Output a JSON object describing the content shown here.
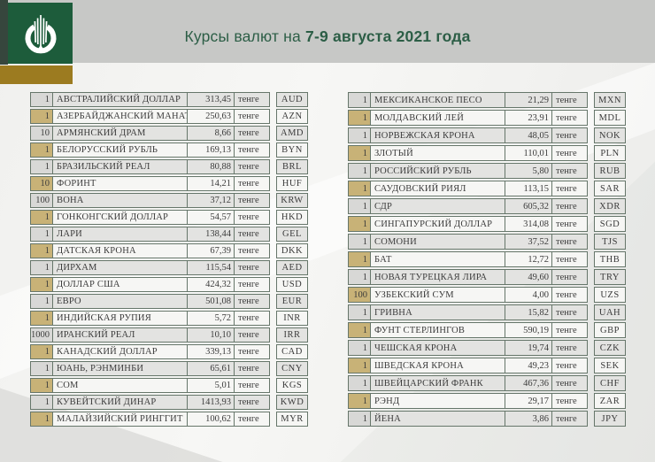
{
  "header": {
    "title_regular": "Курсы валют на ",
    "title_bold": "7-9 августа 2021 года"
  },
  "unit_label": "тенге",
  "colors": {
    "header_band": "#c7c8c6",
    "logo_green": "#1d5c3b",
    "logo_gold": "#9c7b20",
    "title_text": "#2c5e46",
    "table_border": "#66766a",
    "row_gray": "#e3e3e1",
    "row_light": "#f6f6f4",
    "qty_gray": "#d8d8d6",
    "qty_tan": "#c8b277"
  },
  "tables": {
    "left": {
      "rows": [
        {
          "qty": "1",
          "name": "АВСТРАЛИЙСКИЙ ДОЛЛАР",
          "rate": "313,45",
          "code": "AUD"
        },
        {
          "qty": "1",
          "name": "АЗЕРБАЙДЖАНСКИЙ МАНАТ",
          "rate": "250,63",
          "code": "AZN"
        },
        {
          "qty": "10",
          "name": "АРМЯНСКИЙ ДРАМ",
          "rate": "8,66",
          "code": "AMD"
        },
        {
          "qty": "1",
          "name": "БЕЛОРУССКИЙ РУБЛЬ",
          "rate": "169,13",
          "code": "BYN"
        },
        {
          "qty": "1",
          "name": "БРАЗИЛЬСКИЙ РЕАЛ",
          "rate": "80,88",
          "code": "BRL"
        },
        {
          "qty": "10",
          "name": "ФОРИНТ",
          "rate": "14,21",
          "code": "HUF"
        },
        {
          "qty": "100",
          "name": "ВОНА",
          "rate": "37,12",
          "code": "KRW"
        },
        {
          "qty": "1",
          "name": "ГОНКОНГСКИЙ ДОЛЛАР",
          "rate": "54,57",
          "code": "HKD"
        },
        {
          "qty": "1",
          "name": "ЛАРИ",
          "rate": "138,44",
          "code": "GEL"
        },
        {
          "qty": "1",
          "name": "ДАТСКАЯ КРОНА",
          "rate": "67,39",
          "code": "DKK"
        },
        {
          "qty": "1",
          "name": "ДИРХАМ",
          "rate": "115,54",
          "code": "AED"
        },
        {
          "qty": "1",
          "name": "ДОЛЛАР США",
          "rate": "424,32",
          "code": "USD"
        },
        {
          "qty": "1",
          "name": "ЕВРО",
          "rate": "501,08",
          "code": "EUR"
        },
        {
          "qty": "1",
          "name": "ИНДИЙСКАЯ РУПИЯ",
          "rate": "5,72",
          "code": "INR"
        },
        {
          "qty": "1000",
          "name": "ИРАНСКИЙ РЕАЛ",
          "rate": "10,10",
          "code": "IRR"
        },
        {
          "qty": "1",
          "name": "КАНАДСКИЙ ДОЛЛАР",
          "rate": "339,13",
          "code": "CAD"
        },
        {
          "qty": "1",
          "name": "ЮАНЬ, РЭНМИНБИ",
          "rate": "65,61",
          "code": "CNY"
        },
        {
          "qty": "1",
          "name": "СОМ",
          "rate": "5,01",
          "code": "KGS"
        },
        {
          "qty": "1",
          "name": "КУВЕЙТСКИЙ ДИНАР",
          "rate": "1413,93",
          "code": "KWD"
        },
        {
          "qty": "1",
          "name": "МАЛАЙЗИЙСКИЙ РИНГГИТ",
          "rate": "100,62",
          "code": "MYR"
        }
      ]
    },
    "right": {
      "rows": [
        {
          "qty": "1",
          "name": "МЕКСИКАНСКОЕ ПЕСО",
          "rate": "21,29",
          "code": "MXN"
        },
        {
          "qty": "1",
          "name": "МОЛДАВСКИЙ ЛЕЙ",
          "rate": "23,91",
          "code": "MDL"
        },
        {
          "qty": "1",
          "name": "НОРВЕЖСКАЯ КРОНА",
          "rate": "48,05",
          "code": "NOK"
        },
        {
          "qty": "1",
          "name": "ЗЛОТЫЙ",
          "rate": "110,01",
          "code": "PLN"
        },
        {
          "qty": "1",
          "name": "РОССИЙСКИЙ РУБЛЬ",
          "rate": "5,80",
          "code": "RUB"
        },
        {
          "qty": "1",
          "name": "САУДОВСКИЙ РИЯЛ",
          "rate": "113,15",
          "code": "SAR"
        },
        {
          "qty": "1",
          "name": "СДР",
          "rate": "605,32",
          "code": "XDR"
        },
        {
          "qty": "1",
          "name": "СИНГАПУРСКИЙ ДОЛЛАР",
          "rate": "314,08",
          "code": "SGD"
        },
        {
          "qty": "1",
          "name": "СОМОНИ",
          "rate": "37,52",
          "code": "TJS"
        },
        {
          "qty": "1",
          "name": "БАТ",
          "rate": "12,72",
          "code": "THB"
        },
        {
          "qty": "1",
          "name": "НОВАЯ ТУРЕЦКАЯ ЛИРА",
          "rate": "49,60",
          "code": "TRY"
        },
        {
          "qty": "100",
          "name": "УЗБЕКСКИЙ СУМ",
          "rate": "4,00",
          "code": "UZS"
        },
        {
          "qty": "1",
          "name": "ГРИВНА",
          "rate": "15,82",
          "code": "UAH"
        },
        {
          "qty": "1",
          "name": "ФУНТ СТЕРЛИНГОВ",
          "rate": "590,19",
          "code": "GBP"
        },
        {
          "qty": "1",
          "name": "ЧЕШСКАЯ КРОНА",
          "rate": "19,74",
          "code": "CZK"
        },
        {
          "qty": "1",
          "name": "ШВЕДСКАЯ КРОНА",
          "rate": "49,23",
          "code": "SEK"
        },
        {
          "qty": "1",
          "name": "ШВЕЙЦАРСКИЙ ФРАНК",
          "rate": "467,36",
          "code": "CHF"
        },
        {
          "qty": "1",
          "name": "РЭНД",
          "rate": "29,17",
          "code": "ZAR"
        },
        {
          "qty": "1",
          "name": "ЙЕНА",
          "rate": "3,86",
          "code": "JPY"
        }
      ]
    }
  }
}
